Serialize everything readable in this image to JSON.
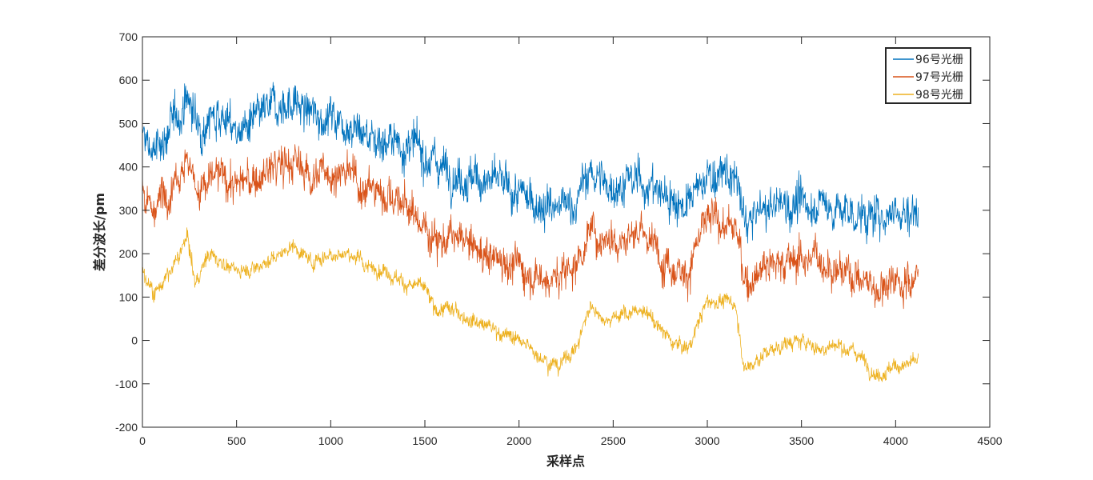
{
  "chart_data": {
    "type": "line",
    "title": "",
    "xlabel": "采样点",
    "ylabel": "差分波长/pm",
    "xlim": [
      0,
      4500
    ],
    "ylim": [
      -200,
      700
    ],
    "xticks": [
      0,
      500,
      1000,
      1500,
      2000,
      2500,
      3000,
      3500,
      4000,
      4500
    ],
    "yticks": [
      -200,
      -100,
      0,
      100,
      200,
      300,
      400,
      500,
      600,
      700
    ],
    "grid": false,
    "legend": {
      "position": "top-right"
    },
    "x_max": 4120,
    "series": [
      {
        "name": "96号光栅",
        "color": "#0072BD",
        "noise": 36,
        "x": [
          0,
          60,
          120,
          180,
          240,
          300,
          400,
          500,
          600,
          700,
          800,
          900,
          1000,
          1100,
          1200,
          1300,
          1400,
          1500,
          1600,
          1700,
          1800,
          1900,
          2000,
          2100,
          2200,
          2300,
          2380,
          2450,
          2550,
          2650,
          2750,
          2800,
          2900,
          2950,
          3000,
          3100,
          3150,
          3200,
          3300,
          3400,
          3500,
          3600,
          3700,
          3800,
          3900,
          4000,
          4050,
          4120
        ],
        "y": [
          470,
          430,
          470,
          510,
          560,
          490,
          530,
          480,
          500,
          540,
          550,
          520,
          520,
          500,
          470,
          460,
          450,
          430,
          400,
          380,
          370,
          360,
          330,
          320,
          300,
          320,
          390,
          360,
          360,
          370,
          340,
          330,
          310,
          350,
          380,
          380,
          370,
          270,
          300,
          320,
          310,
          320,
          300,
          290,
          280,
          310,
          290,
          300
        ]
      },
      {
        "name": "97号光栅",
        "color": "#D95319",
        "noise": 34,
        "x": [
          0,
          60,
          120,
          180,
          240,
          300,
          400,
          500,
          600,
          700,
          800,
          900,
          1000,
          1100,
          1200,
          1300,
          1400,
          1500,
          1600,
          1700,
          1800,
          1900,
          2000,
          2100,
          2200,
          2300,
          2380,
          2450,
          2550,
          2650,
          2750,
          2800,
          2900,
          2950,
          3000,
          3100,
          3150,
          3200,
          3300,
          3400,
          3500,
          3600,
          3700,
          3800,
          3900,
          4000,
          4050,
          4120
        ],
        "y": [
          350,
          300,
          340,
          390,
          420,
          340,
          380,
          360,
          370,
          400,
          410,
          380,
          390,
          380,
          350,
          340,
          310,
          260,
          230,
          230,
          200,
          190,
          170,
          150,
          140,
          180,
          250,
          240,
          240,
          250,
          200,
          180,
          160,
          220,
          280,
          270,
          260,
          130,
          180,
          180,
          190,
          190,
          160,
          150,
          120,
          150,
          130,
          150
        ]
      },
      {
        "name": "98号光栅",
        "color": "#EDB120",
        "noise": 13,
        "x": [
          0,
          60,
          120,
          180,
          240,
          280,
          350,
          500,
          600,
          700,
          800,
          900,
          1000,
          1100,
          1200,
          1300,
          1400,
          1500,
          1550,
          1650,
          1700,
          1800,
          1900,
          2000,
          2100,
          2200,
          2300,
          2380,
          2450,
          2550,
          2650,
          2750,
          2800,
          2900,
          2950,
          3000,
          3100,
          3150,
          3200,
          3300,
          3400,
          3500,
          3600,
          3700,
          3800,
          3900,
          4000,
          4120
        ],
        "y": [
          160,
          110,
          140,
          180,
          240,
          130,
          200,
          160,
          170,
          190,
          220,
          180,
          200,
          200,
          170,
          160,
          130,
          120,
          70,
          70,
          60,
          40,
          20,
          0,
          -30,
          -60,
          -20,
          80,
          50,
          60,
          70,
          30,
          0,
          -20,
          40,
          90,
          90,
          80,
          -70,
          -30,
          -10,
          0,
          -20,
          -10,
          -30,
          -80,
          -60,
          -50
        ]
      }
    ]
  }
}
